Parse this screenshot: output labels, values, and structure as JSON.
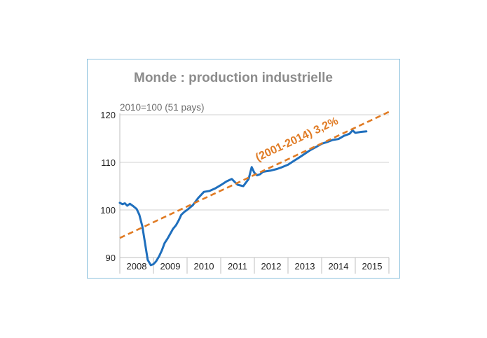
{
  "chart_data": {
    "type": "line",
    "title": "Monde : production industrielle",
    "subtitle": "2010=100 (51 pays)",
    "ylim": [
      90,
      120
    ],
    "yticks": [
      90,
      100,
      110,
      120
    ],
    "xlim": [
      2008.0,
      2016.0
    ],
    "x_tick_labels": [
      "2008",
      "2009",
      "2010",
      "2011",
      "2012",
      "2013",
      "2014",
      "2015"
    ],
    "grid": "horizontal",
    "annotation": "(2001-2014) 3,2%",
    "series": [
      {
        "kind": "data",
        "color": "#1f6fbd",
        "x": [
          2008.0,
          2008.08,
          2008.15,
          2008.22,
          2008.3,
          2008.4,
          2008.5,
          2008.58,
          2008.67,
          2008.75,
          2008.83,
          2008.92,
          2009.0,
          2009.08,
          2009.17,
          2009.25,
          2009.33,
          2009.42,
          2009.5,
          2009.58,
          2009.67,
          2009.75,
          2009.83,
          2009.92,
          2010.0,
          2010.17,
          2010.33,
          2010.5,
          2010.67,
          2010.83,
          2011.0,
          2011.17,
          2011.33,
          2011.5,
          2011.67,
          2011.83,
          2011.92,
          2012.0,
          2012.08,
          2012.17,
          2012.25,
          2012.33,
          2012.5,
          2012.67,
          2012.83,
          2013.0,
          2013.17,
          2013.33,
          2013.5,
          2013.67,
          2013.83,
          2014.0,
          2014.17,
          2014.33,
          2014.5,
          2014.67,
          2014.83,
          2014.92,
          2015.0,
          2015.17,
          2015.33
        ],
        "values": [
          101.5,
          101.2,
          101.4,
          100.9,
          101.3,
          100.8,
          100.2,
          99.0,
          96.5,
          93.0,
          89.5,
          88.4,
          88.6,
          89.2,
          90.3,
          91.5,
          93.0,
          94.0,
          95.0,
          96.0,
          96.8,
          97.8,
          99.0,
          99.6,
          100.0,
          101.0,
          102.5,
          103.8,
          104.0,
          104.5,
          105.2,
          106.0,
          106.5,
          105.3,
          105.0,
          106.5,
          109.0,
          107.8,
          107.3,
          107.5,
          108.0,
          108.1,
          108.3,
          108.6,
          109.0,
          109.5,
          110.3,
          111.0,
          111.8,
          112.6,
          113.2,
          113.9,
          114.3,
          114.7,
          114.9,
          115.6,
          116.0,
          116.7,
          116.2,
          116.4,
          116.5
        ]
      },
      {
        "kind": "trend",
        "color": "#e07b24",
        "x": [
          2008.0,
          2016.0
        ],
        "values": [
          94.1,
          120.6
        ]
      }
    ]
  }
}
